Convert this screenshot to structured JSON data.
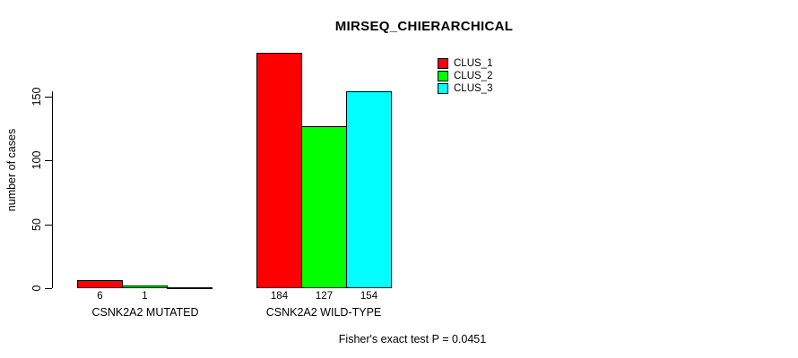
{
  "chart_data": {
    "type": "bar",
    "title": "MIRSEQ_CHIERARCHICAL",
    "ylabel": "number of cases",
    "xlabel": "",
    "yticks": [
      0,
      50,
      100,
      150
    ],
    "ylim": [
      0,
      150
    ],
    "grid": false,
    "legend_position": "top-right",
    "categories": [
      "CSNK2A2 MUTATED",
      "CSNK2A2 WILD-TYPE"
    ],
    "series": [
      {
        "name": "CLUS_1",
        "color": "#FF0000",
        "values": [
          6,
          184
        ]
      },
      {
        "name": "CLUS_2",
        "color": "#00FF00",
        "values": [
          1,
          127
        ]
      },
      {
        "name": "CLUS_3",
        "color": "#00FFFF",
        "values": [
          0,
          154
        ]
      }
    ],
    "groups": [
      {
        "label": "CSNK2A2 MUTATED",
        "values": [
          6,
          1,
          0
        ],
        "value_labels": [
          "6",
          "1",
          ""
        ]
      },
      {
        "label": "CSNK2A2 WILD-TYPE",
        "values": [
          184,
          127,
          154
        ],
        "value_labels": [
          "184",
          "127",
          "154"
        ]
      }
    ],
    "footnote": "Fisher's exact test P = 0.0451",
    "bar_border_color": "#000000",
    "text_color": "#000000",
    "background_color": "#FFFFFF"
  }
}
